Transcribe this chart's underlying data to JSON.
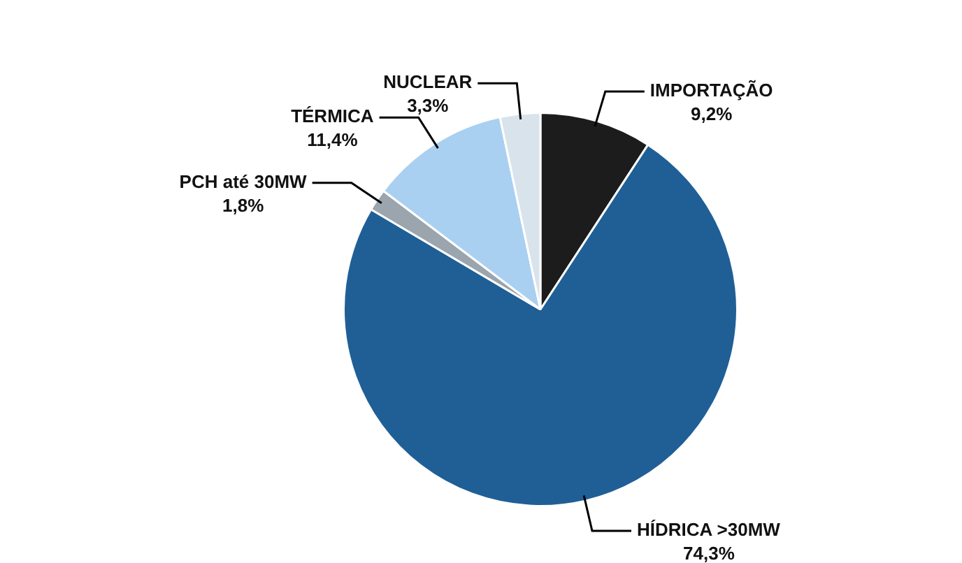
{
  "chart_data": {
    "type": "pie",
    "categories": [
      "IMPORTAÇÃO",
      "HÍDRICA >30MW",
      "PCH até 30MW",
      "TÉRMICA",
      "NUCLEAR"
    ],
    "values": [
      9.2,
      74.3,
      1.8,
      11.4,
      3.3
    ],
    "value_labels": [
      "9,2%",
      "74,3%",
      "1,8%",
      "11,4%",
      "3,3%"
    ],
    "colors": [
      "#1c1c1c",
      "#1f5f96",
      "#9aa5ad",
      "#a9d0f1",
      "#d9e3eb"
    ],
    "legend": false
  }
}
